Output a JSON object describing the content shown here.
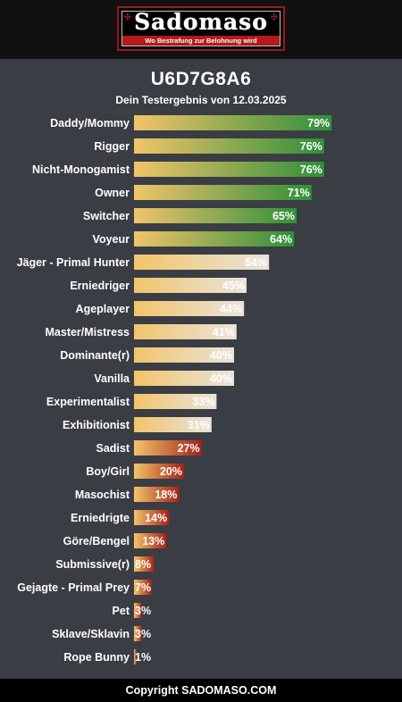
{
  "header": {
    "brand": "Sadomaso",
    "tagline": "Wo Bestrafung zur Belohnung wird"
  },
  "result": {
    "code": "U6D7G8A6",
    "subtitle": "Dein Testergebnis von 12.03.2025"
  },
  "colors": {
    "start": "#f2c46a",
    "green": "#2e8f3a",
    "neutral": "#e8e4dc",
    "red": "#a52218"
  },
  "chart_data": {
    "type": "bar",
    "orientation": "horizontal",
    "xlim": [
      0,
      100
    ],
    "categories": [
      "Daddy/Mommy",
      "Rigger",
      "Nicht-Monogamist",
      "Owner",
      "Switcher",
      "Voyeur",
      "Jäger - Primal Hunter",
      "Erniedriger",
      "Ageplayer",
      "Master/Mistress",
      "Dominante(r)",
      "Vanilla",
      "Experimentalist",
      "Exhibitionist",
      "Sadist",
      "Boy/Girl",
      "Masochist",
      "Erniedrigte",
      "Göre/Bengel",
      "Submissive(r)",
      "Gejagte - Primal Prey",
      "Pet",
      "Sklave/Sklavin",
      "Rope Bunny"
    ],
    "values": [
      79,
      76,
      76,
      71,
      65,
      64,
      54,
      45,
      44,
      41,
      40,
      40,
      33,
      31,
      27,
      20,
      18,
      14,
      13,
      8,
      7,
      3,
      3,
      1
    ],
    "value_labels": [
      "79%",
      "76%",
      "76%",
      "71%",
      "65%",
      "64%",
      "54%",
      "45%",
      "44%",
      "41%",
      "40%",
      "40%",
      "33%",
      "31%",
      "27%",
      "20%",
      "18%",
      "14%",
      "13%",
      "8%",
      "7%",
      "3%",
      "3%",
      "1%"
    ]
  },
  "footer": {
    "text": "Copyright SADOMASO.COM"
  }
}
